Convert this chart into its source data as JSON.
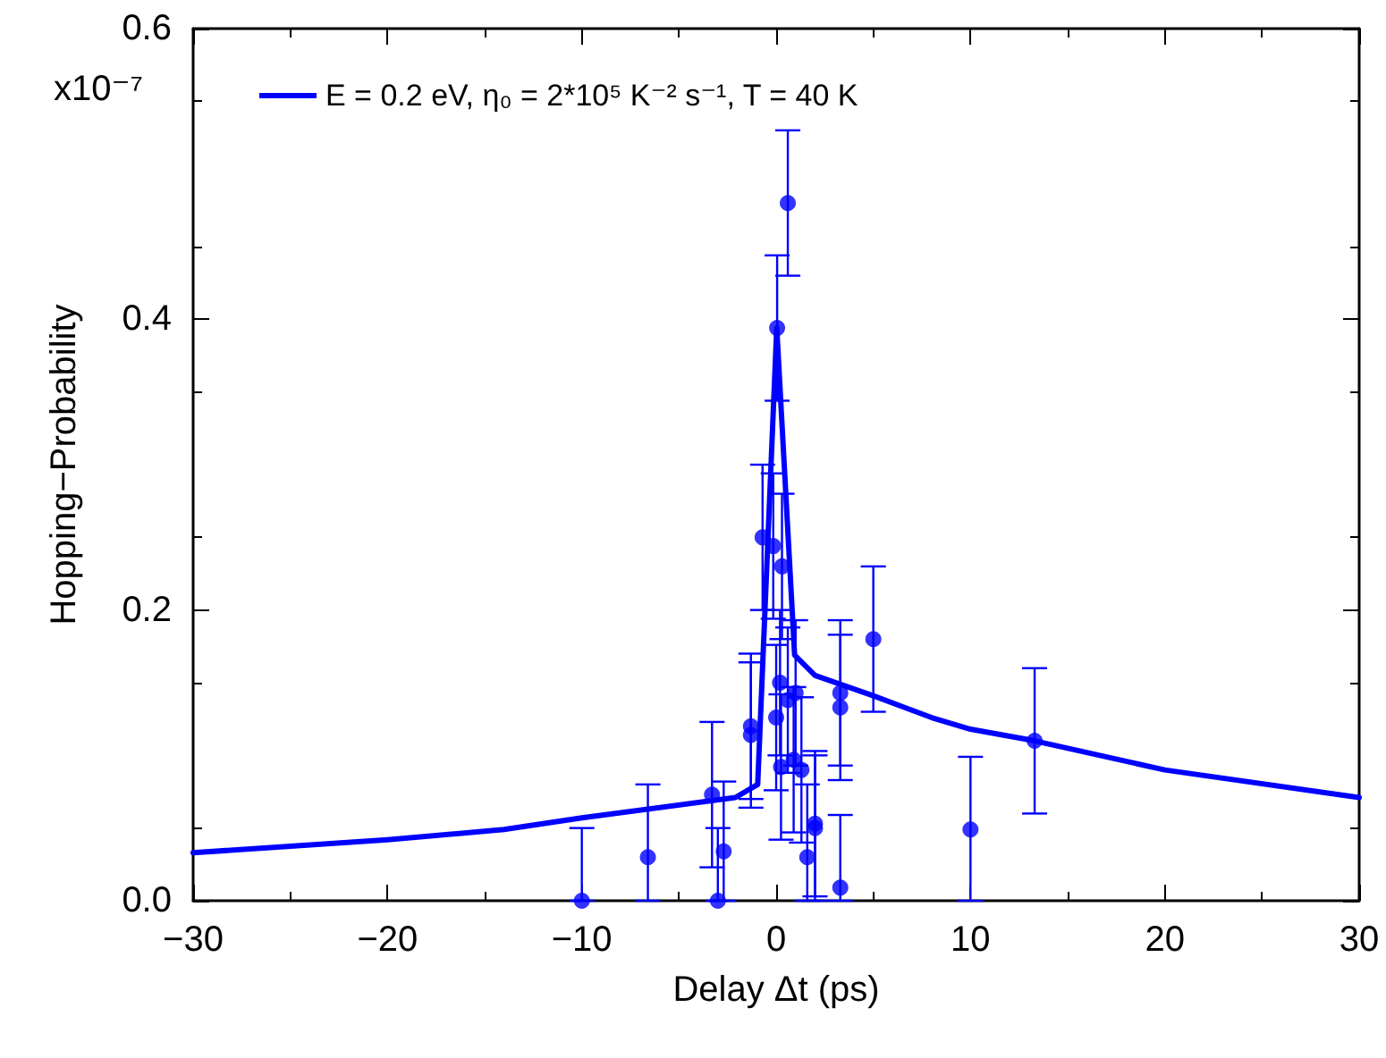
{
  "chart_data": {
    "type": "scatter",
    "xlabel": "Delay Δt (ps)",
    "ylabel": "Hopping−Probability",
    "annotations": [
      "x10⁻⁷"
    ],
    "xlim": [
      -30,
      30
    ],
    "xticks": [
      {
        "value": -30,
        "label": "−30"
      },
      {
        "value": -20,
        "label": "−20"
      },
      {
        "value": -10,
        "label": "−10"
      },
      0,
      10,
      20,
      30
    ],
    "ylim": [
      0,
      0.6
    ],
    "yticks": [
      {
        "value": 0,
        "label": "0.0"
      },
      0.2,
      0.4,
      0.6
    ],
    "grid": false,
    "legend": "top left",
    "marker": "circle",
    "series": [
      {
        "type": "line",
        "name": "E = 0.2 eV, η₀ = 2*10⁵ K⁻² s⁻¹, T = 40 K",
        "color": "#0000ff",
        "marker": "none",
        "line_style": "solid",
        "x": [
          -30,
          -20,
          -14,
          -10,
          -2.1,
          -0.95,
          0.03,
          0.95,
          2,
          5,
          8,
          10,
          13.3,
          20,
          30
        ],
        "values": [
          0.033,
          0.042,
          0.049,
          0.057,
          0.071,
          0.08,
          0.394,
          0.169,
          0.155,
          0.141,
          0.126,
          0.118,
          0.11,
          0.09,
          0.071
        ]
      },
      {
        "type": "scatter",
        "color": "#0000ff",
        "x": [
          -10,
          -6.6,
          -3.3,
          -3.0,
          -2.7,
          -1.3,
          -1.3,
          -0.7,
          0.05,
          0.6,
          -0.15,
          0.3,
          0.2,
          0.6,
          1.0,
          0,
          0.25,
          0.9,
          1.3,
          2.0,
          2.0,
          1.6,
          3.3,
          3.3,
          3.3,
          5.0,
          10,
          13.3
        ],
        "values": [
          0,
          0.03,
          0.073,
          0,
          0.034,
          0.12,
          0.114,
          0.25,
          0.394,
          0.48,
          0.244,
          0.23,
          0.15,
          0.138,
          0.143,
          0.126,
          0.092,
          0.097,
          0.09,
          0.053,
          0.05,
          0.03,
          0.143,
          0.133,
          0.009,
          0.18,
          0.049,
          0.11
        ],
        "errors": [
          [
            0,
            0.05
          ],
          [
            0,
            0.08
          ],
          0.05,
          [
            0,
            0.05
          ],
          [
            0,
            0.082
          ],
          0.05,
          0.05,
          0.05,
          0.05,
          0.05,
          0.05,
          0.05,
          0.05,
          0.05,
          0.05,
          0.05,
          0.05,
          0.05,
          0.05,
          0.05,
          0.05,
          [
            0,
            0.08
          ],
          0.05,
          0.05,
          [
            0,
            0.059
          ],
          0.05,
          [
            0,
            0.099
          ],
          0.05
        ]
      }
    ]
  }
}
